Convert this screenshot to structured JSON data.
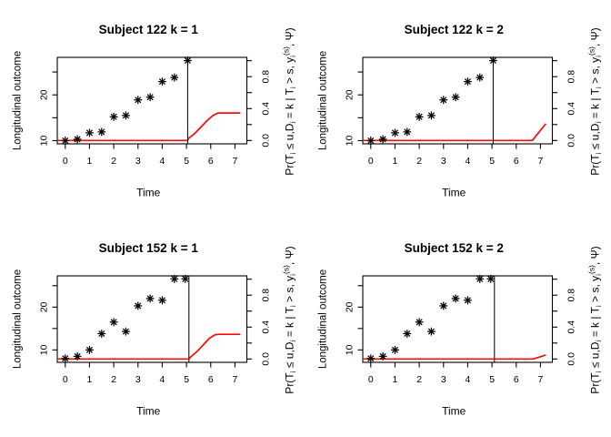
{
  "figure": {
    "background": "#ffffff",
    "axis_color": "#000000",
    "curve_color": "#fb0a0a",
    "marker_color": "#000000",
    "vline_color": "#111111"
  },
  "labels": {
    "xlabel": "Time",
    "ylabel_left": "Longitudinal outcome",
    "ylabel_right_plain": "Pr(Ti ≤ u,Di = k | Ti > s, yi(s), Ψ)",
    "ylabel_right_segments": [
      {
        "t": "Pr(T"
      },
      {
        "t": "i",
        "v": "sub"
      },
      {
        "t": " ≤ u,D"
      },
      {
        "t": "i",
        "v": "sub"
      },
      {
        "t": " = k | T"
      },
      {
        "t": "i",
        "v": "sub"
      },
      {
        "t": " > s, y"
      },
      {
        "t": "i",
        "v": "sub"
      },
      {
        "t": "(s)",
        "v": "sup"
      },
      {
        "t": ", Ψ)"
      }
    ]
  },
  "chart_data": [
    {
      "type": "scatter",
      "title": "Subject 122 k = 1",
      "subject": "122",
      "k": 1,
      "marker": "pch8-asterisk",
      "xlabel": "Time",
      "ylabel": "Longitudinal outcome",
      "xlim": [
        -0.33,
        7.49
      ],
      "ylim_left": [
        9.3,
        28.2
      ],
      "ylim_right": [
        -0.042,
        1.042
      ],
      "x_ticks": [
        0,
        1,
        2,
        3,
        4,
        5,
        6,
        7
      ],
      "left_ticks": [
        10,
        15,
        20,
        25
      ],
      "left_tick_labels": [
        "10",
        "",
        "20",
        ""
      ],
      "right_ticks": [
        0,
        0.2,
        0.4,
        0.6,
        0.8,
        1.0
      ],
      "right_tick_labels": [
        "0.0",
        "",
        "0.4",
        "",
        "0.8",
        ""
      ],
      "points_t": [
        0,
        0.5,
        1,
        1.5,
        2,
        2.5,
        3,
        3.5,
        4,
        4.5,
        5.05
      ],
      "points_y": [
        10.0,
        10.3,
        11.7,
        11.9,
        15.2,
        15.5,
        18.9,
        19.5,
        22.9,
        23.8,
        27.5
      ],
      "vline_t": 5.05,
      "curve_t": [
        -0.33,
        5.05,
        5.1,
        5.35,
        5.6,
        5.85,
        6.1,
        6.3,
        7.22
      ],
      "curve_p": [
        0,
        0,
        0.03,
        0.09,
        0.17,
        0.25,
        0.315,
        0.345,
        0.345
      ]
    },
    {
      "type": "scatter",
      "title": "Subject 122 k = 2",
      "subject": "122",
      "k": 2,
      "marker": "pch8-asterisk",
      "xlabel": "Time",
      "ylabel": "Longitudinal outcome",
      "xlim": [
        -0.33,
        7.49
      ],
      "ylim_left": [
        9.3,
        28.2
      ],
      "ylim_right": [
        -0.042,
        1.042
      ],
      "x_ticks": [
        0,
        1,
        2,
        3,
        4,
        5,
        6,
        7
      ],
      "left_ticks": [
        10,
        15,
        20,
        25
      ],
      "left_tick_labels": [
        "10",
        "",
        "20",
        ""
      ],
      "right_ticks": [
        0,
        0.2,
        0.4,
        0.6,
        0.8,
        1.0
      ],
      "right_tick_labels": [
        "0.0",
        "",
        "0.4",
        "",
        "0.8",
        ""
      ],
      "points_t": [
        0,
        0.5,
        1,
        1.5,
        2,
        2.5,
        3,
        3.5,
        4,
        4.5,
        5.05
      ],
      "points_y": [
        10.0,
        10.3,
        11.7,
        11.9,
        15.2,
        15.5,
        18.9,
        19.5,
        22.9,
        23.8,
        27.5
      ],
      "vline_t": 5.05,
      "curve_t": [
        -0.33,
        6.66,
        7.22
      ],
      "curve_p": [
        0,
        0,
        0.21
      ]
    },
    {
      "type": "scatter",
      "title": "Subject 152 k = 1",
      "subject": "152",
      "k": 1,
      "marker": "pch8-asterisk",
      "xlabel": "Time",
      "ylabel": "Longitudinal outcome",
      "xlim": [
        -0.33,
        7.49
      ],
      "ylim_left": [
        7.1,
        27.3
      ],
      "ylim_right": [
        -0.042,
        1.042
      ],
      "x_ticks": [
        0,
        1,
        2,
        3,
        4,
        5,
        6,
        7
      ],
      "left_ticks": [
        10,
        15,
        20,
        25
      ],
      "left_tick_labels": [
        "10",
        "",
        "20",
        ""
      ],
      "right_ticks": [
        0,
        0.2,
        0.4,
        0.6,
        0.8,
        1.0
      ],
      "right_tick_labels": [
        "0.0",
        "",
        "0.4",
        "",
        "0.8",
        ""
      ],
      "points_t": [
        0,
        0.5,
        1,
        1.5,
        2,
        2.5,
        3,
        3.5,
        4,
        4.5,
        4.95
      ],
      "points_y": [
        8.0,
        8.5,
        10.0,
        13.8,
        16.5,
        14.3,
        20.3,
        22.0,
        21.6,
        26.6,
        26.6
      ],
      "vline_t": 5.1,
      "curve_t": [
        -0.33,
        5.1,
        5.15,
        5.45,
        5.7,
        5.95,
        6.18,
        6.36,
        7.22
      ],
      "curve_p": [
        0,
        0,
        0.02,
        0.1,
        0.18,
        0.26,
        0.305,
        0.31,
        0.31
      ]
    },
    {
      "type": "scatter",
      "title": "Subject 152 k = 2",
      "subject": "152",
      "k": 2,
      "marker": "pch8-asterisk",
      "xlabel": "Time",
      "ylabel": "Longitudinal outcome",
      "xlim": [
        -0.33,
        7.49
      ],
      "ylim_left": [
        7.1,
        27.3
      ],
      "ylim_right": [
        -0.042,
        1.042
      ],
      "x_ticks": [
        0,
        1,
        2,
        3,
        4,
        5,
        6,
        7
      ],
      "left_ticks": [
        10,
        15,
        20,
        25
      ],
      "left_tick_labels": [
        "10",
        "",
        "20",
        ""
      ],
      "right_ticks": [
        0,
        0.2,
        0.4,
        0.6,
        0.8,
        1.0
      ],
      "right_tick_labels": [
        "0.0",
        "",
        "0.4",
        "",
        "0.8",
        ""
      ],
      "points_t": [
        0,
        0.5,
        1,
        1.5,
        2,
        2.5,
        3,
        3.5,
        4,
        4.5,
        4.95
      ],
      "points_y": [
        8.0,
        8.5,
        10.0,
        13.8,
        16.5,
        14.3,
        20.3,
        22.0,
        21.6,
        26.6,
        26.6
      ],
      "vline_t": 5.1,
      "curve_t": [
        -0.33,
        6.7,
        7.22
      ],
      "curve_p": [
        0,
        0,
        0.05
      ]
    }
  ]
}
